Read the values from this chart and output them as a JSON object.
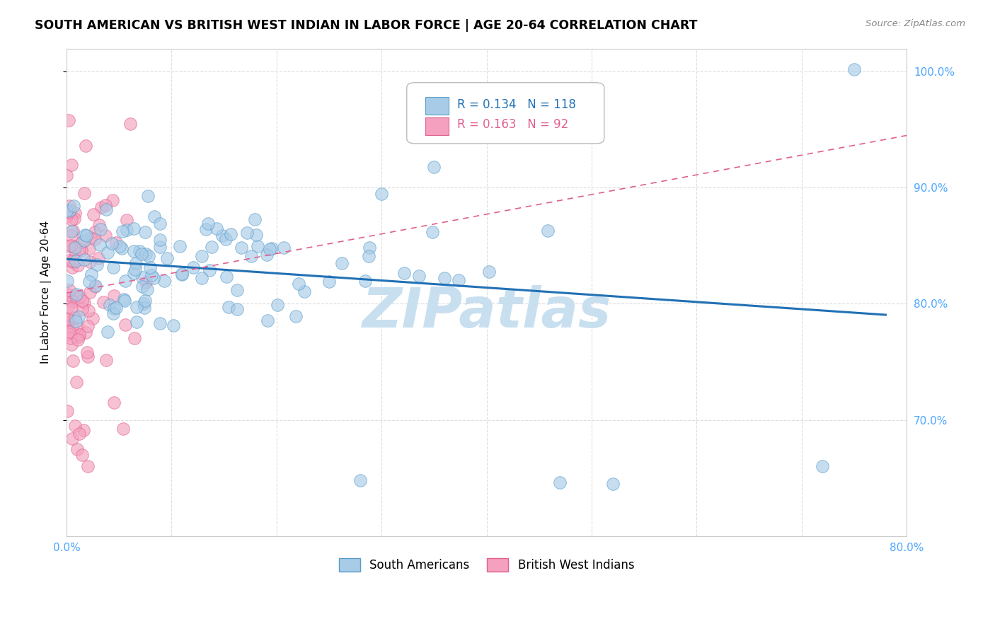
{
  "title": "SOUTH AMERICAN VS BRITISH WEST INDIAN IN LABOR FORCE | AGE 20-64 CORRELATION CHART",
  "source": "Source: ZipAtlas.com",
  "ylabel": "In Labor Force | Age 20-64",
  "xlim": [
    0.0,
    0.8
  ],
  "ylim": [
    0.6,
    1.02
  ],
  "yticks": [
    0.7,
    0.8,
    0.9,
    1.0
  ],
  "ytick_labels": [
    "70.0%",
    "80.0%",
    "90.0%",
    "100.0%"
  ],
  "xticks": [
    0.0,
    0.1,
    0.2,
    0.3,
    0.4,
    0.5,
    0.6,
    0.7,
    0.8
  ],
  "xtick_labels": [
    "0.0%",
    "",
    "",
    "",
    "",
    "",
    "",
    "",
    "80.0%"
  ],
  "blue_R": 0.134,
  "blue_N": 118,
  "pink_R": 0.163,
  "pink_N": 92,
  "blue_color": "#a8cce8",
  "pink_color": "#f4a0be",
  "blue_edge_color": "#5a9dc8",
  "pink_edge_color": "#e06090",
  "blue_line_color": "#2171b5",
  "pink_line_color": "#e06090",
  "watermark": "ZIPatlas",
  "watermark_color": "#c8dff0",
  "legend_label_blue": "South Americans",
  "legend_label_pink": "British West Indians",
  "bg_color": "#ffffff",
  "grid_color": "#dddddd",
  "tick_color": "#4da6ff",
  "axis_color": "#cccccc"
}
